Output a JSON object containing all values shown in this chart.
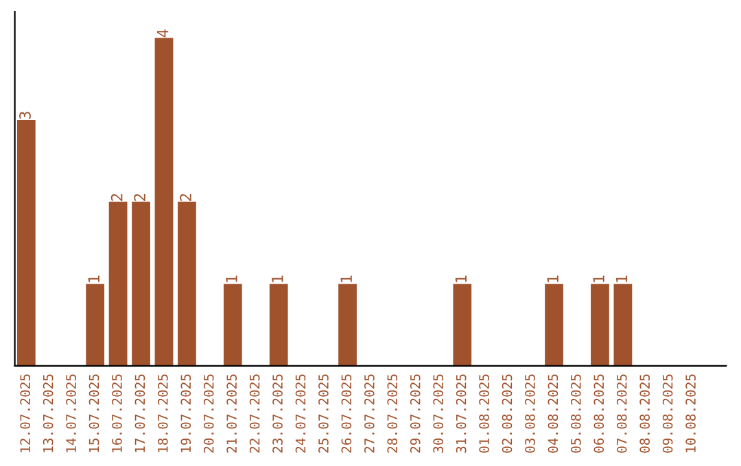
{
  "chart_data": {
    "type": "bar",
    "categories": [
      "12.07.2025",
      "13.07.2025",
      "14.07.2025",
      "15.07.2025",
      "16.07.2025",
      "17.07.2025",
      "18.07.2025",
      "19.07.2025",
      "20.07.2025",
      "21.07.2025",
      "22.07.2025",
      "23.07.2025",
      "24.07.2025",
      "25.07.2025",
      "26.07.2025",
      "27.07.2025",
      "28.07.2025",
      "29.07.2025",
      "30.07.2025",
      "31.07.2025",
      "01.08.2025",
      "02.08.2025",
      "03.08.2025",
      "04.08.2025",
      "05.08.2025",
      "06.08.2025",
      "07.08.2025",
      "08.08.2025",
      "09.08.2025",
      "10.08.2025"
    ],
    "values": [
      3,
      0,
      0,
      1,
      2,
      2,
      4,
      2,
      0,
      1,
      0,
      1,
      0,
      0,
      1,
      0,
      0,
      0,
      0,
      1,
      0,
      0,
      0,
      1,
      0,
      1,
      1,
      0,
      0,
      0
    ],
    "value_labels": [
      "3",
      null,
      null,
      "1",
      "2",
      "2",
      "4",
      "2",
      null,
      "1",
      null,
      "1",
      null,
      null,
      "1",
      null,
      null,
      null,
      null,
      "1",
      null,
      null,
      null,
      "1",
      null,
      "1",
      "1",
      null,
      null,
      null
    ],
    "color": "#a0522d",
    "grid": false,
    "legend": false
  }
}
